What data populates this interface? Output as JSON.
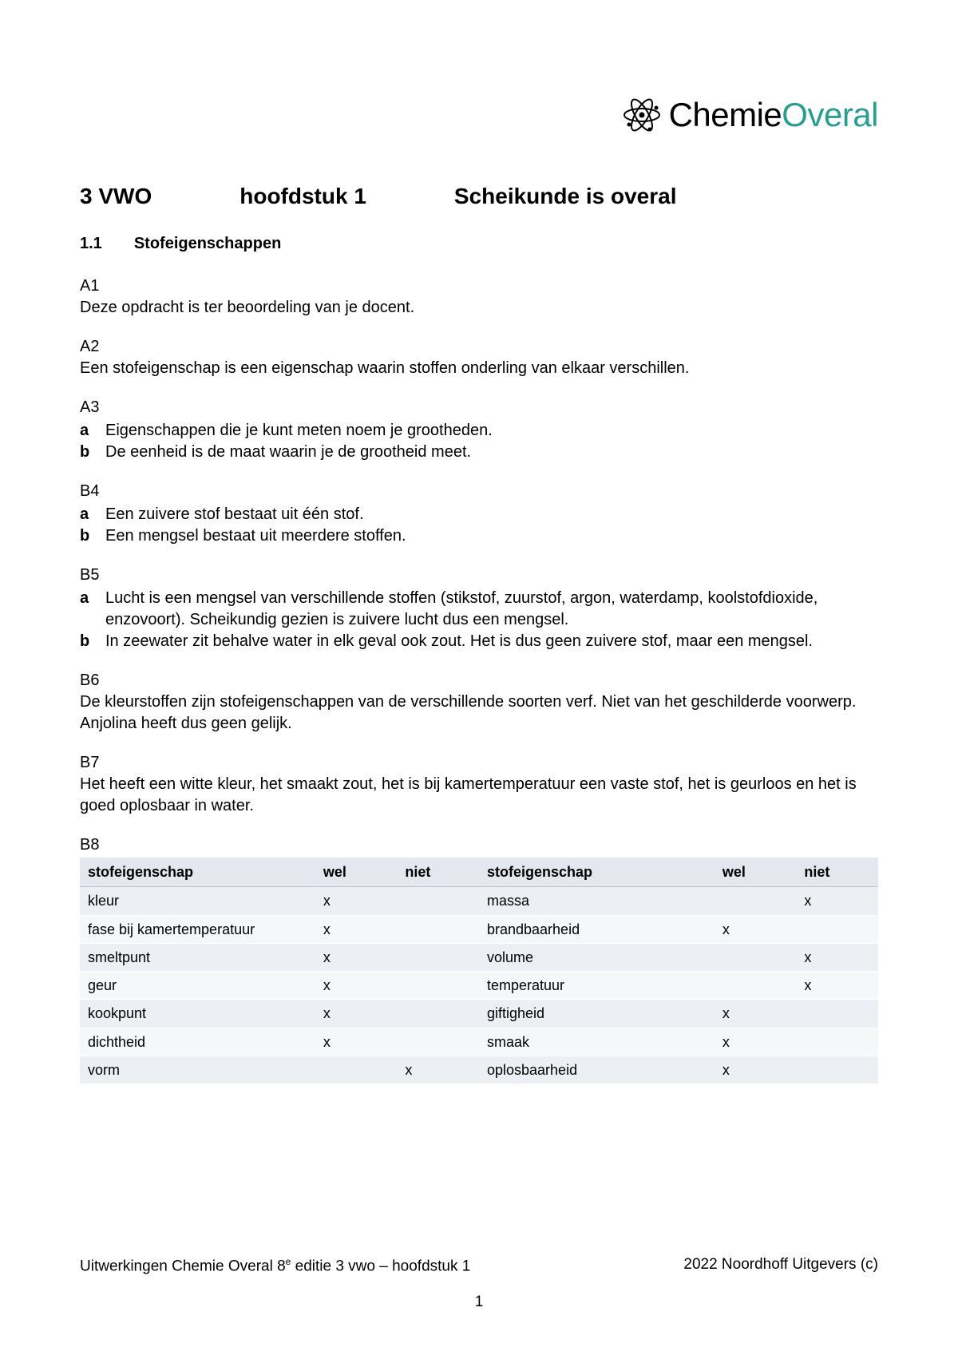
{
  "logo": {
    "chemie": "Chemie",
    "overal": "Overal",
    "icon_color": "#000000",
    "accent_color": "#2a9d8f"
  },
  "heading": {
    "level": "3 VWO",
    "chapter": "hoofdstuk 1",
    "title": "Scheikunde is overal"
  },
  "section": {
    "num": "1.1",
    "title": "Stofeigenschappen"
  },
  "blocks": {
    "A1": {
      "label": "A1",
      "text": "Deze opdracht is ter beoordeling van je docent."
    },
    "A2": {
      "label": "A2",
      "text": "Een stofeigenschap is een eigenschap waarin stoffen onderling van elkaar verschillen."
    },
    "A3": {
      "label": "A3",
      "a": "Eigenschappen die je kunt meten noem je grootheden.",
      "b": "De eenheid is de maat waarin je de grootheid meet."
    },
    "B4": {
      "label": "B4",
      "a": "Een zuivere stof bestaat uit één stof.",
      "b": "Een mengsel bestaat uit meerdere stoffen."
    },
    "B5": {
      "label": "B5",
      "a": "Lucht is een mengsel van verschillende stoffen (stikstof, zuurstof, argon, waterdamp, koolstofdioxide, enzovoort). Scheikundig gezien is zuivere lucht dus een mengsel.",
      "b": "In zeewater zit behalve water in elk geval ook zout. Het is dus geen zuivere stof, maar een mengsel."
    },
    "B6": {
      "label": "B6",
      "text": "De kleurstoffen zijn stofeigenschappen van de verschillende soorten verf. Niet van het geschilderde voorwerp. Anjolina heeft dus geen gelijk."
    },
    "B7": {
      "label": "B7",
      "text": "Het heeft een witte kleur, het smaakt zout, het is bij kamertemperatuur een vaste stof, het is geurloos en het is goed oplosbaar in water."
    },
    "B8": {
      "label": "B8"
    }
  },
  "table": {
    "headers": {
      "prop": "stofeigenschap",
      "wel": "wel",
      "niet": "niet"
    },
    "header_bg": "#e4e7ed",
    "row_odd_bg": "#eceff3",
    "row_even_bg": "#f6f7f9",
    "mark": "x",
    "rows": [
      {
        "l_prop": "kleur",
        "l_wel": "x",
        "l_niet": "",
        "r_prop": "massa",
        "r_wel": "",
        "r_niet": "x"
      },
      {
        "l_prop": "fase bij kamertemperatuur",
        "l_wel": "x",
        "l_niet": "",
        "r_prop": "brandbaarheid",
        "r_wel": "x",
        "r_niet": ""
      },
      {
        "l_prop": "smeltpunt",
        "l_wel": "x",
        "l_niet": "",
        "r_prop": "volume",
        "r_wel": "",
        "r_niet": "x"
      },
      {
        "l_prop": "geur",
        "l_wel": "x",
        "l_niet": "",
        "r_prop": "temperatuur",
        "r_wel": "",
        "r_niet": "x"
      },
      {
        "l_prop": "kookpunt",
        "l_wel": "x",
        "l_niet": "",
        "r_prop": "giftigheid",
        "r_wel": "x",
        "r_niet": ""
      },
      {
        "l_prop": "dichtheid",
        "l_wel": "x",
        "l_niet": "",
        "r_prop": "smaak",
        "r_wel": "x",
        "r_niet": ""
      },
      {
        "l_prop": "vorm",
        "l_wel": "",
        "l_niet": "x",
        "r_prop": "oplosbaarheid",
        "r_wel": "x",
        "r_niet": ""
      }
    ]
  },
  "footer": {
    "left_prefix": "Uitwerkingen Chemie Overal 8",
    "left_sup": "e",
    "left_suffix": " editie 3 vwo – hoofdstuk 1",
    "right": "2022 Noordhoff Uitgevers (c)",
    "page": "1"
  }
}
